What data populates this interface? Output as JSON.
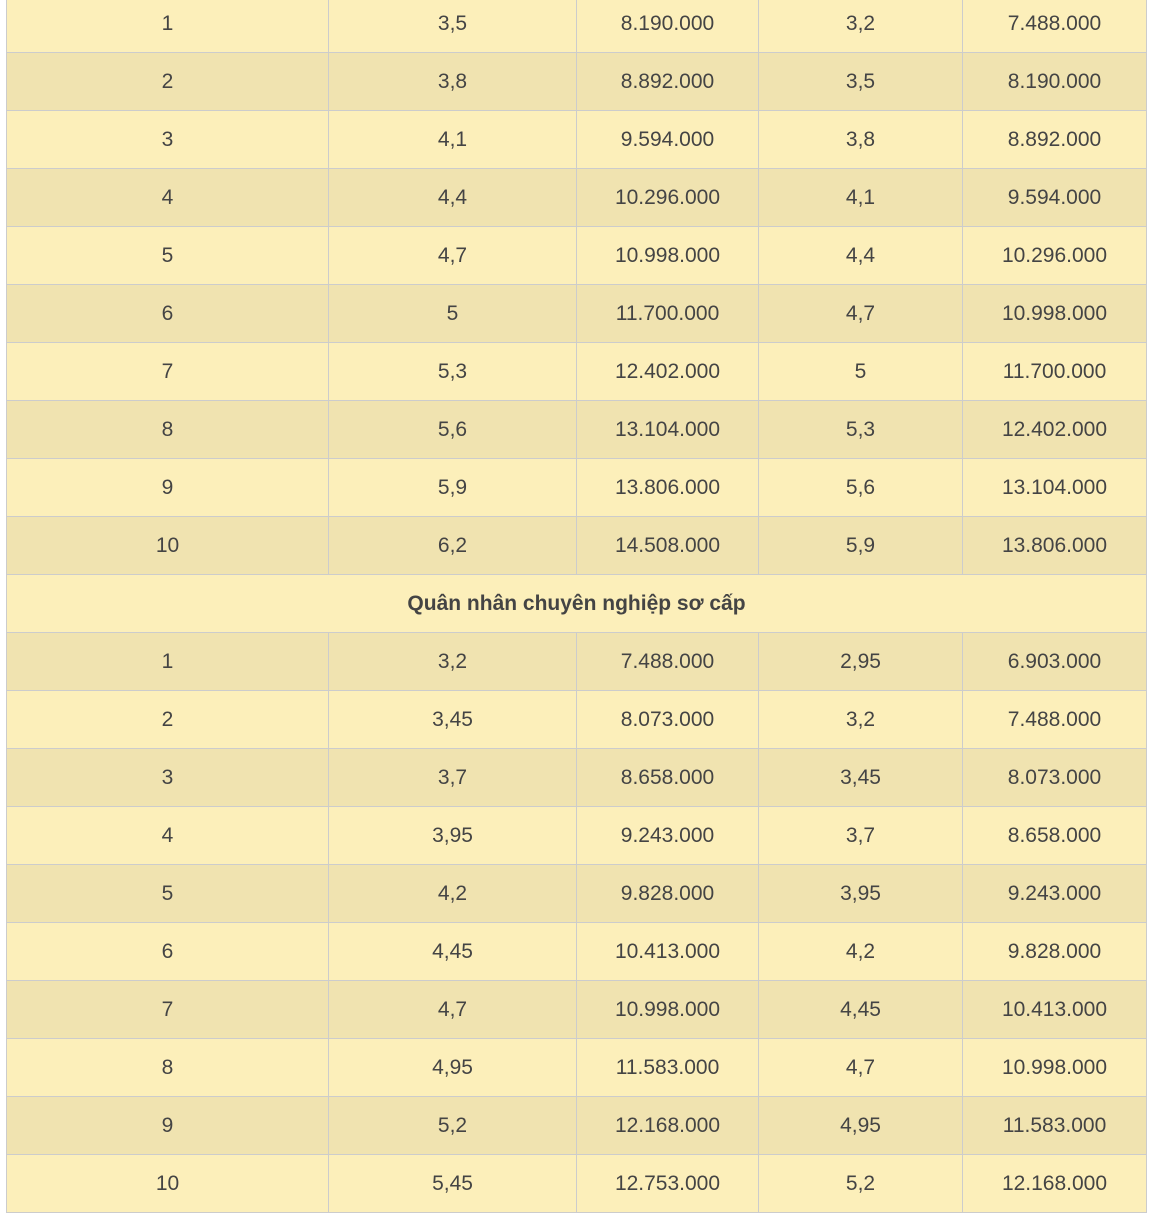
{
  "group1_rows": [
    [
      "1",
      "3,5",
      "8.190.000",
      "3,2",
      "7.488.000"
    ],
    [
      "2",
      "3,8",
      "8.892.000",
      "3,5",
      "8.190.000"
    ],
    [
      "3",
      "4,1",
      "9.594.000",
      "3,8",
      "8.892.000"
    ],
    [
      "4",
      "4,4",
      "10.296.000",
      "4,1",
      "9.594.000"
    ],
    [
      "5",
      "4,7",
      "10.998.000",
      "4,4",
      "10.296.000"
    ],
    [
      "6",
      "5",
      "11.700.000",
      "4,7",
      "10.998.000"
    ],
    [
      "7",
      "5,3",
      "12.402.000",
      "5",
      "11.700.000"
    ],
    [
      "8",
      "5,6",
      "13.104.000",
      "5,3",
      "12.402.000"
    ],
    [
      "9",
      "5,9",
      "13.806.000",
      "5,6",
      "13.104.000"
    ],
    [
      "10",
      "6,2",
      "14.508.000",
      "5,9",
      "13.806.000"
    ]
  ],
  "section_heading": "Quân nhân chuyên nghiệp sơ cấp",
  "group2_rows": [
    [
      "1",
      "3,2",
      "7.488.000",
      "2,95",
      "6.903.000"
    ],
    [
      "2",
      "3,45",
      "8.073.000",
      "3,2",
      "7.488.000"
    ],
    [
      "3",
      "3,7",
      "8.658.000",
      "3,45",
      "8.073.000"
    ],
    [
      "4",
      "3,95",
      "9.243.000",
      "3,7",
      "8.658.000"
    ],
    [
      "5",
      "4,2",
      "9.828.000",
      "3,95",
      "9.243.000"
    ],
    [
      "6",
      "4,45",
      "10.413.000",
      "4,2",
      "9.828.000"
    ],
    [
      "7",
      "4,7",
      "10.998.000",
      "4,45",
      "10.413.000"
    ],
    [
      "8",
      "4,95",
      "11.583.000",
      "4,7",
      "10.998.000"
    ],
    [
      "9",
      "5,2",
      "12.168.000",
      "4,95",
      "11.583.000"
    ],
    [
      "10",
      "5,45",
      "12.753.000",
      "5,2",
      "12.168.000"
    ]
  ],
  "colors": {
    "row_light": "#fcefba",
    "row_dark": "#f0e3b0",
    "border": "#cccccc"
  }
}
